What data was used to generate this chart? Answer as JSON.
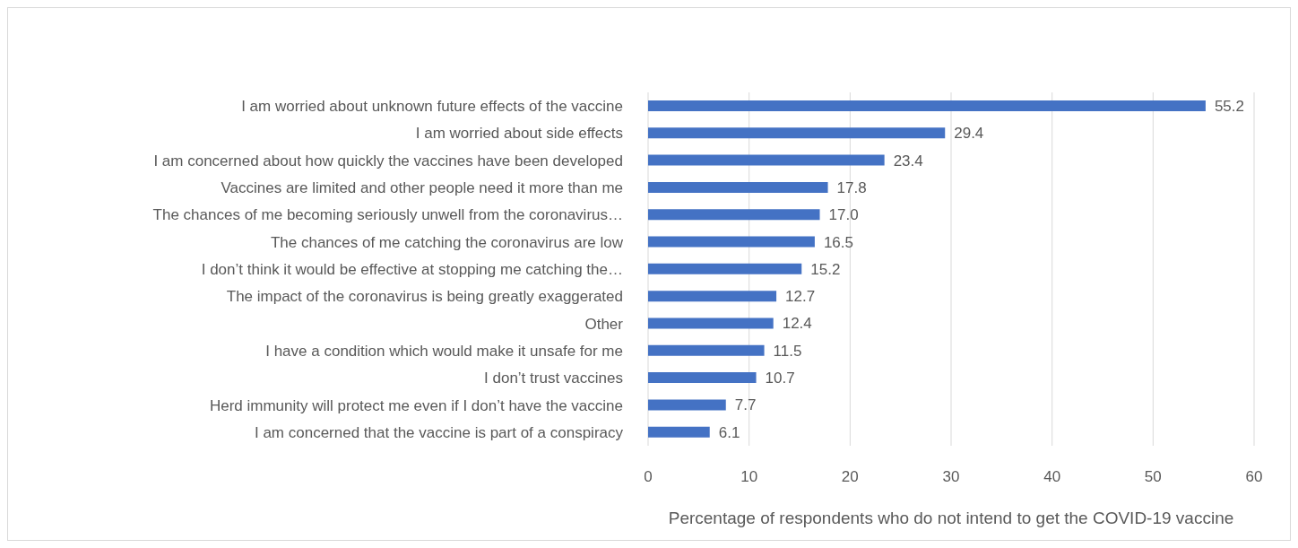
{
  "chart_data": {
    "type": "bar",
    "orientation": "horizontal",
    "xlabel": "Percentage of respondents who do not intend to get the COVID-19 vaccine",
    "categories": [
      "I am worried about unknown future effects of the vaccine",
      "I am worried about side effects",
      "I am concerned about how quickly the vaccines have been developed",
      "Vaccines are limited and other people need it more than me",
      "The chances of me becoming seriously unwell from the coronavirus…",
      "The chances of me catching the coronavirus are low",
      "I don’t think it would be effective at stopping me catching the…",
      "The impact of the coronavirus is being greatly exaggerated",
      "Other",
      "I have a condition which would make it unsafe for me",
      "I don’t trust vaccines",
      "Herd immunity will protect me even if I don’t have the vaccine",
      "I am concerned that the vaccine is part of a conspiracy"
    ],
    "values": [
      55.2,
      29.4,
      23.4,
      17.8,
      17.0,
      16.5,
      15.2,
      12.7,
      12.4,
      11.5,
      10.7,
      7.7,
      6.1
    ],
    "value_labels": [
      "55.2",
      "29.4",
      "23.4",
      "17.8",
      "17.0",
      "16.5",
      "15.2",
      "12.7",
      "12.4",
      "11.5",
      "10.7",
      "7.7",
      "6.1"
    ],
    "color": "#4472c4",
    "xlim": [
      0,
      60
    ],
    "xticks": [
      0,
      10,
      20,
      30,
      40,
      50,
      60
    ],
    "grid": "x"
  }
}
